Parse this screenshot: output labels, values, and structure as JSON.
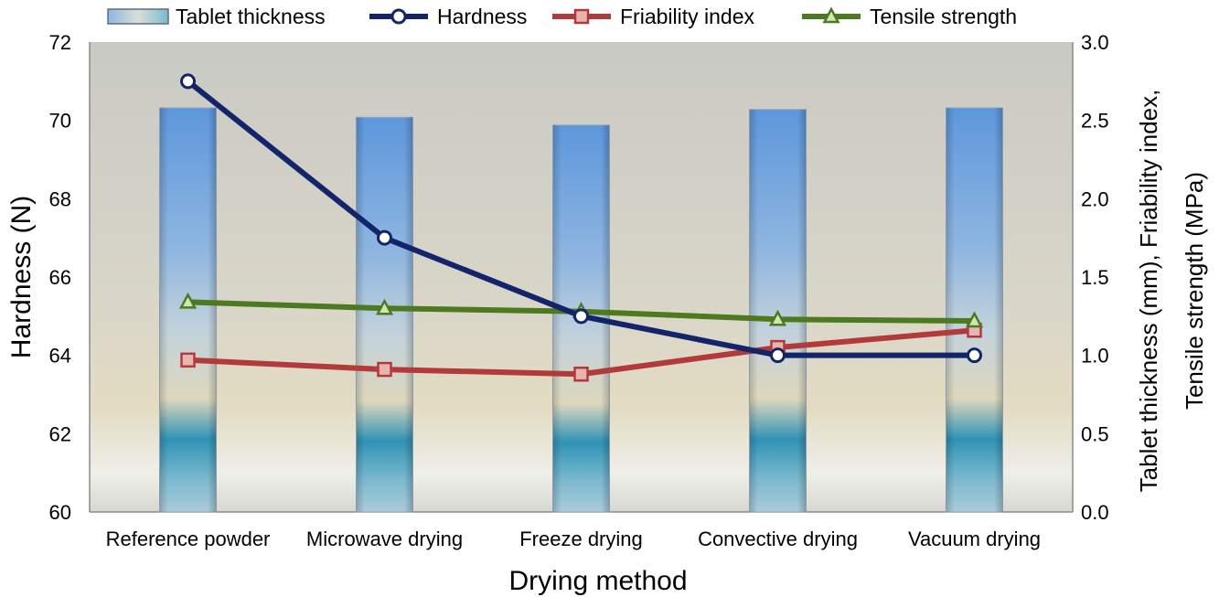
{
  "chart_data": {
    "type": "bar",
    "categories": [
      "Reference powder",
      "Microwave drying",
      "Freeze drying",
      "Convective drying",
      "Vacuum drying"
    ],
    "xlabel": "Drying method",
    "ylabel": "Hardness (N)",
    "ylabel_right_line1": "Tablet thickness (mm), Friability index,",
    "ylabel_right_line2": "Tensile strength (MPa)",
    "ylim": [
      60,
      72
    ],
    "yticks": [
      "60",
      "62",
      "64",
      "66",
      "68",
      "70",
      "72"
    ],
    "y2lim": [
      0,
      3
    ],
    "y2ticks": [
      "0.0",
      "0.5",
      "1.0",
      "1.5",
      "2.0",
      "2.5",
      "3.0"
    ],
    "legend_position": "top",
    "series": [
      {
        "name": "Tablet thickness",
        "kind": "bar",
        "axis": "right",
        "values": [
          2.58,
          2.52,
          2.47,
          2.57,
          2.58
        ],
        "color": "#6fa3dc"
      },
      {
        "name": "Hardness",
        "kind": "line",
        "axis": "left",
        "marker": "circle",
        "values": [
          71,
          67,
          65,
          64,
          64
        ],
        "color": "#13246b"
      },
      {
        "name": "Friability index",
        "kind": "line",
        "axis": "right",
        "marker": "square",
        "values": [
          0.97,
          0.91,
          0.88,
          1.05,
          1.16
        ],
        "color": "#b23a3a"
      },
      {
        "name": "Tensile strength",
        "kind": "line",
        "axis": "right",
        "marker": "triangle",
        "values": [
          1.34,
          1.3,
          1.28,
          1.23,
          1.22
        ],
        "color": "#4d7a1f"
      }
    ]
  }
}
